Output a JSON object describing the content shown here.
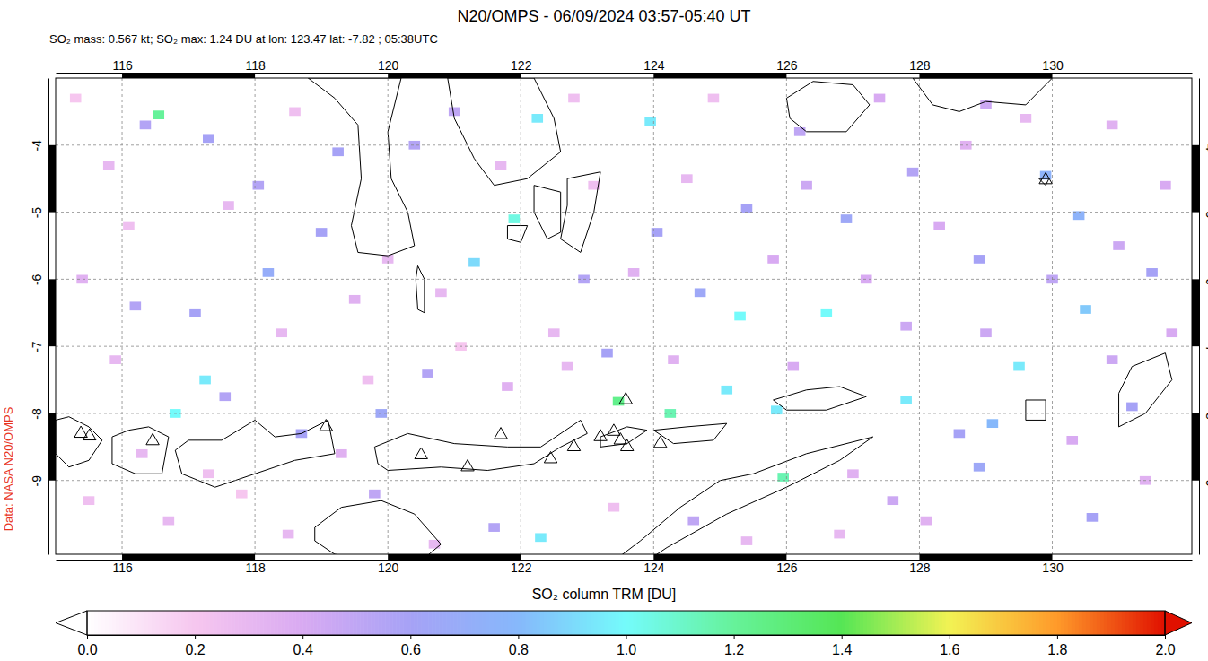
{
  "chart_data": {
    "type": "map",
    "title": "N20/OMPS - 06/09/2024 03:57-05:40 UT",
    "subtitle": "SO₂ mass: 0.567 kt; SO₂ max: 1.24 DU at lon: 123.47 lat: -7.82 ; 05:38UTC",
    "source": "Data: NASA N20/OMPS",
    "xlim": [
      115,
      132.1
    ],
    "ylim": [
      -10.1,
      -3
    ],
    "xticks": [
      116,
      118,
      120,
      122,
      124,
      126,
      128,
      130
    ],
    "yticks": [
      -9,
      -8,
      -7,
      -6,
      -5,
      -4
    ],
    "grid": true,
    "colorbar": {
      "label": "SO₂ column TRM [DU]",
      "range": [
        0,
        2
      ],
      "ticks": [
        {
          "value": 0,
          "label": "0.0"
        },
        {
          "value": 0.2,
          "label": "0.2"
        },
        {
          "value": 0.4,
          "label": "0.4"
        },
        {
          "value": 0.6,
          "label": "0.6"
        },
        {
          "value": 0.8,
          "label": "0.8"
        },
        {
          "value": 1,
          "label": "1.0"
        },
        {
          "value": 1.2,
          "label": "1.2"
        },
        {
          "value": 1.4,
          "label": "1.4"
        },
        {
          "value": 1.6,
          "label": "1.6"
        },
        {
          "value": 1.8,
          "label": "1.8"
        },
        {
          "value": 2,
          "label": "2.0"
        }
      ],
      "stops": [
        {
          "value": 0,
          "color": "#ffffff"
        },
        {
          "value": 0.2,
          "color": "#f6c6ef"
        },
        {
          "value": 0.4,
          "color": "#d8aaf2"
        },
        {
          "value": 0.6,
          "color": "#a6a2f6"
        },
        {
          "value": 0.8,
          "color": "#86b8fb"
        },
        {
          "value": 1,
          "color": "#74fbfb"
        },
        {
          "value": 1.2,
          "color": "#66f29a"
        },
        {
          "value": 1.4,
          "color": "#55e655"
        },
        {
          "value": 1.6,
          "color": "#f2f254"
        },
        {
          "value": 1.8,
          "color": "#ff9a2a"
        },
        {
          "value": 2,
          "color": "#e01000"
        }
      ]
    },
    "cells": [
      [
        116.55,
        -3.55,
        1.2
      ],
      [
        116.35,
        -3.7,
        0.55
      ],
      [
        117.3,
        -3.9,
        0.6
      ],
      [
        118.05,
        -4.6,
        0.55
      ],
      [
        119.25,
        -4.1,
        0.6
      ],
      [
        119.0,
        -5.3,
        0.6
      ],
      [
        118.2,
        -5.9,
        0.7
      ],
      [
        117.1,
        -6.5,
        0.6
      ],
      [
        116.2,
        -6.4,
        0.55
      ],
      [
        117.25,
        -7.5,
        0.95
      ],
      [
        116.8,
        -8.0,
        1.0
      ],
      [
        117.55,
        -7.75,
        0.55
      ],
      [
        118.7,
        -8.3,
        0.6
      ],
      [
        119.9,
        -8.0,
        0.65
      ],
      [
        120.6,
        -7.4,
        0.55
      ],
      [
        121.3,
        -5.75,
        0.9
      ],
      [
        121.9,
        -5.1,
        1.05
      ],
      [
        122.25,
        -3.6,
        0.95
      ],
      [
        123.95,
        -3.65,
        0.95
      ],
      [
        124.05,
        -5.3,
        0.6
      ],
      [
        122.95,
        -6.0,
        0.55
      ],
      [
        123.3,
        -7.1,
        0.6
      ],
      [
        123.47,
        -7.82,
        1.24
      ],
      [
        124.25,
        -8.0,
        1.15
      ],
      [
        125.1,
        -7.65,
        0.95
      ],
      [
        125.3,
        -6.55,
        1.0
      ],
      [
        124.7,
        -6.2,
        0.65
      ],
      [
        125.4,
        -4.95,
        0.6
      ],
      [
        125.85,
        -7.95,
        0.95
      ],
      [
        125.95,
        -8.95,
        1.15
      ],
      [
        126.6,
        -6.5,
        1.0
      ],
      [
        127.8,
        -7.8,
        0.95
      ],
      [
        126.9,
        -5.1,
        0.65
      ],
      [
        127.9,
        -4.4,
        0.55
      ],
      [
        128.9,
        -5.7,
        0.6
      ],
      [
        129.9,
        -4.45,
        0.75
      ],
      [
        130.4,
        -5.05,
        0.75
      ],
      [
        130.5,
        -6.45,
        0.85
      ],
      [
        129.5,
        -7.3,
        0.95
      ],
      [
        129.1,
        -8.15,
        0.8
      ],
      [
        128.6,
        -8.3,
        0.6
      ],
      [
        128.9,
        -8.8,
        0.65
      ],
      [
        130.6,
        -9.55,
        0.6
      ],
      [
        131.2,
        -7.9,
        0.6
      ],
      [
        131.5,
        -5.9,
        0.6
      ],
      [
        119.8,
        -9.2,
        0.5
      ],
      [
        121.6,
        -9.7,
        0.55
      ],
      [
        122.3,
        -9.85,
        0.95
      ],
      [
        124.6,
        -9.6,
        0.5
      ],
      [
        127.6,
        -9.3,
        0.45
      ],
      [
        126.2,
        -3.8,
        0.5
      ],
      [
        129.0,
        -3.4,
        0.45
      ],
      [
        121.0,
        -3.5,
        0.5
      ],
      [
        120.4,
        -4.0,
        0.55
      ],
      [
        115.3,
        -3.3,
        0.2
      ],
      [
        115.8,
        -4.3,
        0.3
      ],
      [
        116.1,
        -5.2,
        0.25
      ],
      [
        115.4,
        -6.0,
        0.35
      ],
      [
        115.9,
        -7.2,
        0.3
      ],
      [
        115.5,
        -9.3,
        0.25
      ],
      [
        116.7,
        -9.6,
        0.3
      ],
      [
        117.8,
        -9.2,
        0.2
      ],
      [
        118.5,
        -9.8,
        0.3
      ],
      [
        117.6,
        -4.9,
        0.3
      ],
      [
        118.6,
        -3.5,
        0.25
      ],
      [
        118.4,
        -6.8,
        0.3
      ],
      [
        119.5,
        -6.3,
        0.35
      ],
      [
        119.7,
        -7.5,
        0.25
      ],
      [
        120.8,
        -6.2,
        0.3
      ],
      [
        121.1,
        -7.0,
        0.2
      ],
      [
        121.8,
        -7.6,
        0.35
      ],
      [
        122.5,
        -6.8,
        0.3
      ],
      [
        123.1,
        -4.6,
        0.25
      ],
      [
        123.7,
        -5.9,
        0.35
      ],
      [
        124.5,
        -4.5,
        0.3
      ],
      [
        124.9,
        -3.3,
        0.25
      ],
      [
        125.8,
        -5.7,
        0.4
      ],
      [
        126.3,
        -4.6,
        0.45
      ],
      [
        127.4,
        -3.3,
        0.4
      ],
      [
        127.2,
        -6.0,
        0.4
      ],
      [
        127.8,
        -6.7,
        0.45
      ],
      [
        128.3,
        -5.2,
        0.4
      ],
      [
        128.7,
        -4.0,
        0.35
      ],
      [
        129.6,
        -3.6,
        0.3
      ],
      [
        130.9,
        -3.7,
        0.35
      ],
      [
        131.7,
        -4.6,
        0.4
      ],
      [
        131.0,
        -5.5,
        0.45
      ],
      [
        130.0,
        -6.0,
        0.5
      ],
      [
        131.8,
        -6.8,
        0.4
      ],
      [
        129.0,
        -6.8,
        0.45
      ],
      [
        128.1,
        -9.6,
        0.35
      ],
      [
        126.8,
        -9.8,
        0.3
      ],
      [
        125.4,
        -9.9,
        0.3
      ],
      [
        123.4,
        -9.4,
        0.25
      ],
      [
        120.7,
        -9.95,
        0.3
      ],
      [
        119.3,
        -8.6,
        0.35
      ],
      [
        116.3,
        -8.6,
        0.3
      ],
      [
        117.3,
        -8.9,
        0.25
      ],
      [
        122.7,
        -7.3,
        0.3
      ],
      [
        124.3,
        -7.2,
        0.35
      ],
      [
        126.1,
        -7.3,
        0.4
      ],
      [
        127.0,
        -8.9,
        0.35
      ],
      [
        130.3,
        -8.4,
        0.4
      ],
      [
        131.4,
        -9.0,
        0.35
      ],
      [
        130.9,
        -7.2,
        0.45
      ],
      [
        120.0,
        -5.7,
        0.3
      ],
      [
        121.7,
        -4.3,
        0.3
      ],
      [
        122.8,
        -3.3,
        0.25
      ]
    ],
    "coastlines": [
      [
        [
          115.0,
          -8.1
        ],
        [
          115.2,
          -8.05
        ],
        [
          115.5,
          -8.2
        ],
        [
          115.7,
          -8.4
        ],
        [
          115.5,
          -8.7
        ],
        [
          115.2,
          -8.8
        ],
        [
          115.0,
          -8.6
        ]
      ],
      [
        [
          115.85,
          -8.35
        ],
        [
          116.1,
          -8.25
        ],
        [
          116.4,
          -8.2
        ],
        [
          116.7,
          -8.35
        ],
        [
          116.6,
          -8.9
        ],
        [
          116.2,
          -8.9
        ],
        [
          115.85,
          -8.75
        ]
      ],
      [
        [
          116.8,
          -8.55
        ],
        [
          117.0,
          -8.4
        ],
        [
          117.5,
          -8.4
        ],
        [
          118.0,
          -8.1
        ],
        [
          118.3,
          -8.35
        ],
        [
          118.7,
          -8.3
        ],
        [
          119.1,
          -8.1
        ],
        [
          119.2,
          -8.6
        ],
        [
          118.6,
          -8.7
        ],
        [
          118.0,
          -8.9
        ],
        [
          117.4,
          -9.1
        ],
        [
          116.9,
          -8.9
        ]
      ],
      [
        [
          119.8,
          -8.5
        ],
        [
          120.3,
          -8.3
        ],
        [
          121.0,
          -8.45
        ],
        [
          121.8,
          -8.5
        ],
        [
          122.3,
          -8.5
        ],
        [
          122.9,
          -8.1
        ],
        [
          123.0,
          -8.3
        ],
        [
          122.6,
          -8.5
        ],
        [
          122.2,
          -8.75
        ],
        [
          121.5,
          -8.85
        ],
        [
          120.8,
          -8.8
        ],
        [
          120.0,
          -8.85
        ],
        [
          119.85,
          -8.75
        ]
      ],
      [
        [
          123.2,
          -8.35
        ],
        [
          123.6,
          -8.2
        ],
        [
          123.9,
          -8.25
        ],
        [
          123.6,
          -8.45
        ],
        [
          123.2,
          -8.5
        ]
      ],
      [
        [
          124.0,
          -8.25
        ],
        [
          124.5,
          -8.2
        ],
        [
          125.1,
          -8.15
        ],
        [
          124.9,
          -8.4
        ],
        [
          124.3,
          -8.45
        ]
      ],
      [
        [
          125.8,
          -7.8
        ],
        [
          126.3,
          -7.65
        ],
        [
          126.8,
          -7.6
        ],
        [
          127.2,
          -7.75
        ],
        [
          126.6,
          -7.95
        ],
        [
          126.0,
          -7.95
        ]
      ],
      [
        [
          118.9,
          -9.7
        ],
        [
          119.3,
          -9.4
        ],
        [
          119.9,
          -9.3
        ],
        [
          120.4,
          -9.5
        ],
        [
          120.8,
          -9.95
        ],
        [
          120.5,
          -10.2
        ],
        [
          119.8,
          -10.2
        ],
        [
          119.2,
          -10.1
        ],
        [
          118.9,
          -9.9
        ]
      ],
      [
        [
          123.4,
          -10.2
        ],
        [
          123.8,
          -9.9
        ],
        [
          124.4,
          -9.4
        ],
        [
          125.0,
          -9.0
        ],
        [
          125.5,
          -8.9
        ],
        [
          126.3,
          -8.6
        ],
        [
          127.3,
          -8.35
        ],
        [
          126.8,
          -8.7
        ],
        [
          126.0,
          -9.1
        ],
        [
          125.1,
          -9.5
        ],
        [
          124.2,
          -10.0
        ],
        [
          123.9,
          -10.2
        ]
      ],
      [
        [
          118.8,
          -3.0
        ],
        [
          119.2,
          -3.3
        ],
        [
          119.55,
          -3.7
        ],
        [
          119.6,
          -4.5
        ],
        [
          119.45,
          -5.2
        ],
        [
          119.55,
          -5.6
        ],
        [
          120.0,
          -5.65
        ],
        [
          120.4,
          -5.5
        ],
        [
          120.3,
          -5.0
        ],
        [
          120.05,
          -4.5
        ],
        [
          120.0,
          -3.8
        ],
        [
          120.2,
          -3.0
        ]
      ],
      [
        [
          120.9,
          -3.0
        ],
        [
          121.0,
          -3.6
        ],
        [
          121.3,
          -4.2
        ],
        [
          121.6,
          -4.6
        ],
        [
          122.1,
          -4.5
        ],
        [
          122.6,
          -4.1
        ],
        [
          122.5,
          -3.6
        ],
        [
          122.2,
          -3.0
        ]
      ],
      [
        [
          122.7,
          -4.5
        ],
        [
          123.2,
          -4.4
        ],
        [
          123.1,
          -5.0
        ],
        [
          122.9,
          -5.6
        ],
        [
          122.6,
          -5.4
        ],
        [
          122.7,
          -4.9
        ]
      ],
      [
        [
          122.2,
          -4.6
        ],
        [
          122.6,
          -4.7
        ],
        [
          122.6,
          -5.3
        ],
        [
          122.4,
          -5.4
        ],
        [
          122.2,
          -5.0
        ]
      ],
      [
        [
          121.8,
          -5.2
        ],
        [
          122.1,
          -5.2
        ],
        [
          122.0,
          -5.45
        ],
        [
          121.8,
          -5.4
        ]
      ],
      [
        [
          120.45,
          -5.8
        ],
        [
          120.55,
          -6.0
        ],
        [
          120.55,
          -6.5
        ],
        [
          120.45,
          -6.45
        ],
        [
          120.42,
          -6.0
        ]
      ],
      [
        [
          126.0,
          -3.3
        ],
        [
          126.4,
          -3.05
        ],
        [
          127.0,
          -3.1
        ],
        [
          127.25,
          -3.4
        ],
        [
          126.9,
          -3.8
        ],
        [
          126.3,
          -3.8
        ],
        [
          126.05,
          -3.6
        ]
      ],
      [
        [
          127.9,
          -3.0
        ],
        [
          128.2,
          -3.4
        ],
        [
          128.6,
          -3.5
        ],
        [
          129.0,
          -3.35
        ],
        [
          129.6,
          -3.4
        ],
        [
          130.0,
          -3.0
        ]
      ],
      [
        [
          129.8,
          -4.5
        ],
        [
          129.95,
          -4.5
        ],
        [
          129.9,
          -4.6
        ]
      ],
      [
        [
          131.2,
          -7.3
        ],
        [
          131.7,
          -7.1
        ],
        [
          131.8,
          -7.5
        ],
        [
          131.4,
          -8.0
        ],
        [
          131.0,
          -8.2
        ],
        [
          131.0,
          -7.7
        ]
      ],
      [
        [
          129.6,
          -7.8
        ],
        [
          129.9,
          -7.8
        ],
        [
          129.9,
          -8.1
        ],
        [
          129.6,
          -8.1
        ]
      ]
    ],
    "volcanoes": {
      "marker": "triangle",
      "points": [
        [
          115.38,
          -8.3
        ],
        [
          115.51,
          -8.34
        ],
        [
          116.46,
          -8.41
        ],
        [
          119.07,
          -8.2
        ],
        [
          120.5,
          -8.62
        ],
        [
          121.2,
          -8.8
        ],
        [
          121.7,
          -8.32
        ],
        [
          122.45,
          -8.68
        ],
        [
          122.8,
          -8.5
        ],
        [
          123.2,
          -8.35
        ],
        [
          123.4,
          -8.27
        ],
        [
          123.5,
          -8.4
        ],
        [
          123.58,
          -7.8
        ],
        [
          123.6,
          -8.5
        ],
        [
          124.1,
          -8.45
        ],
        [
          129.9,
          -4.52
        ]
      ]
    }
  }
}
